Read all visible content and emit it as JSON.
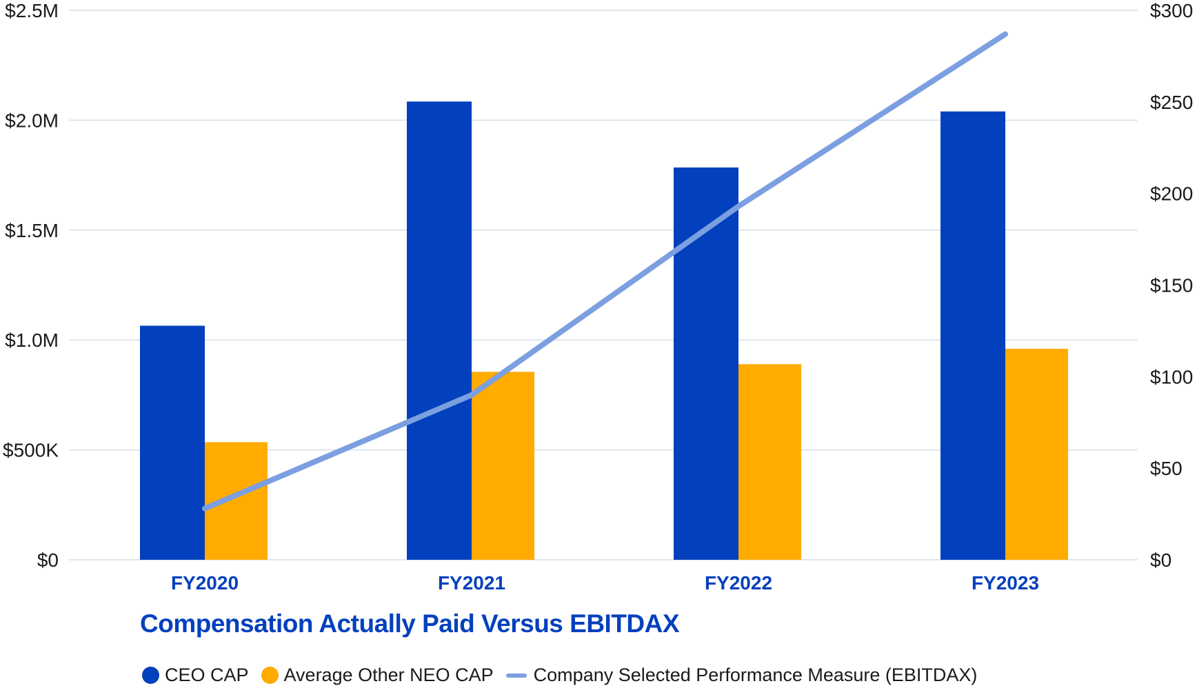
{
  "colors": {
    "ceo": "#0340bd",
    "neo": "#ffab00",
    "measure": "#7b9fe0",
    "title": "#0340bd",
    "grid": "#dde6ee"
  },
  "chart_data": {
    "type": "bar",
    "title": "Compensation Actually Paid Versus EBITDAX",
    "categories": [
      "FY2020",
      "FY2021",
      "FY2022",
      "FY2023"
    ],
    "series": [
      {
        "name": "CEO CAP",
        "axis": "left",
        "kind": "bar",
        "values": [
          1065000,
          2085000,
          1785000,
          2040000
        ]
      },
      {
        "name": "Average Other NEO CAP",
        "axis": "left",
        "kind": "bar",
        "values": [
          535000,
          855000,
          890000,
          960000
        ]
      },
      {
        "name": "Company Selected Performance Measure (EBITDAX)",
        "axis": "right",
        "kind": "line",
        "values": [
          28,
          90,
          193,
          287
        ]
      }
    ],
    "y_left": {
      "ylim": [
        0,
        2500000
      ],
      "ticks": [
        "$0",
        "$500K",
        "$1.0M",
        "$1.5M",
        "$2.0M",
        "$2.5M"
      ]
    },
    "y_right": {
      "ylim": [
        0,
        300
      ],
      "ticks": [
        "$0",
        "$50",
        "$100",
        "$150",
        "$200",
        "$250",
        "$300"
      ]
    },
    "grid": true,
    "legend_position": "bottom-left"
  }
}
